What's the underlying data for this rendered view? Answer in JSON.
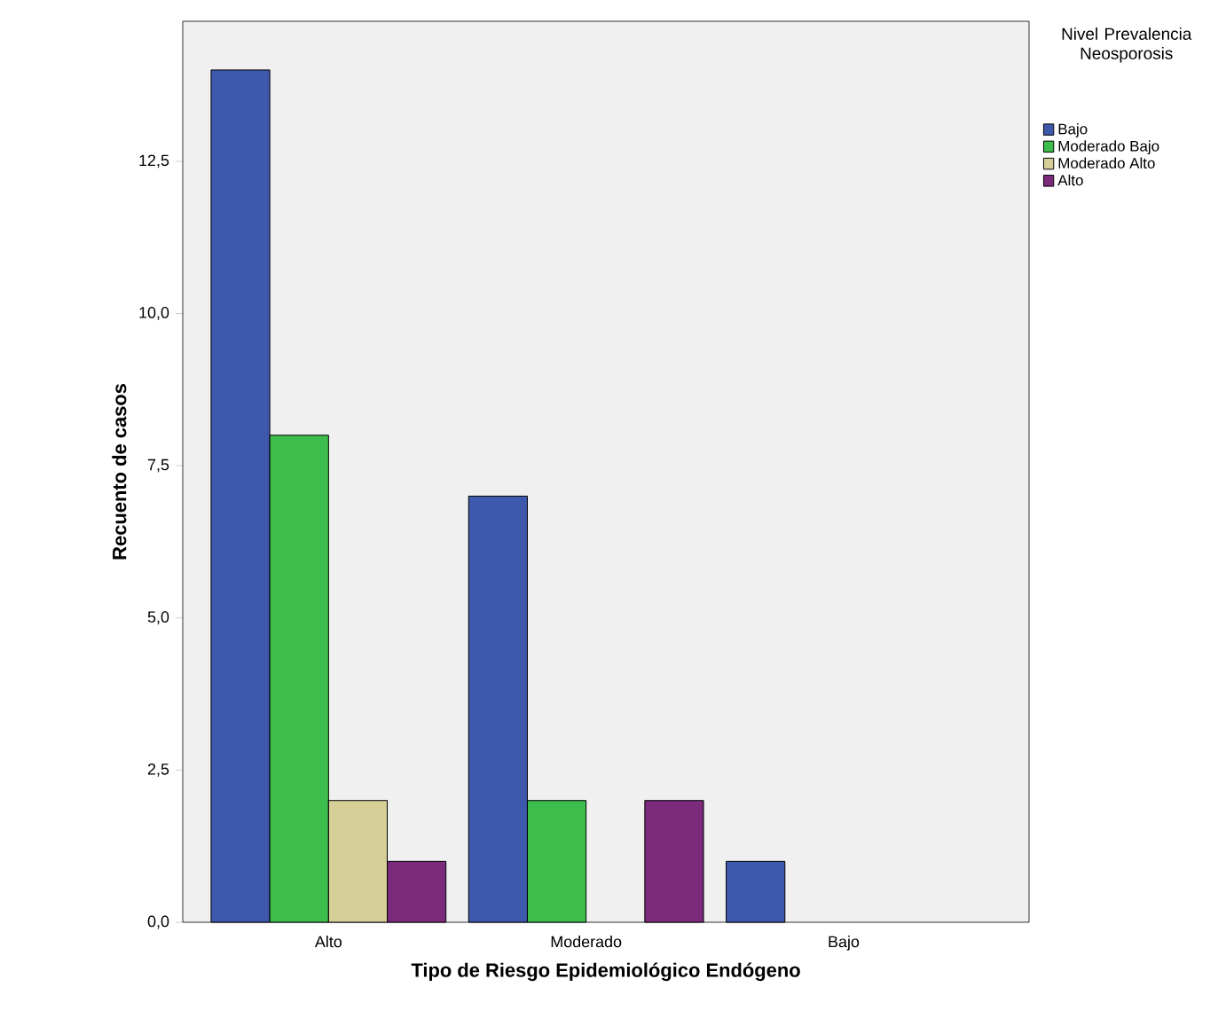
{
  "chart_data": {
    "type": "bar",
    "xlabel": "Tipo de Riesgo Epidemiológico Endógeno",
    "ylabel": "Recuento de casos",
    "legend_title": "Nivel Prevalencia Neosporosis",
    "legend": "top right",
    "categories": [
      "Alto",
      "Moderado",
      "Bajo"
    ],
    "series": [
      {
        "name": "Bajo",
        "color": "#3e58ac",
        "values": [
          14,
          7,
          1
        ]
      },
      {
        "name": "Moderado Bajo",
        "color": "#3dbd4c",
        "values": [
          8,
          2,
          null
        ]
      },
      {
        "name": "Moderado Alto",
        "color": "#d6cf98",
        "values": [
          2,
          null,
          null
        ]
      },
      {
        "name": "Alto",
        "color": "#7b2a7c",
        "values": [
          1,
          2,
          null
        ]
      }
    ],
    "ylim": [
      0,
      14.8
    ],
    "yticks": [
      {
        "value": 0,
        "label": "0,0"
      },
      {
        "value": 2.5,
        "label": "2,5"
      },
      {
        "value": 5,
        "label": "5,0"
      },
      {
        "value": 7.5,
        "label": "7,5"
      },
      {
        "value": 10,
        "label": "10,0"
      },
      {
        "value": 12.5,
        "label": "12,5"
      }
    ]
  }
}
